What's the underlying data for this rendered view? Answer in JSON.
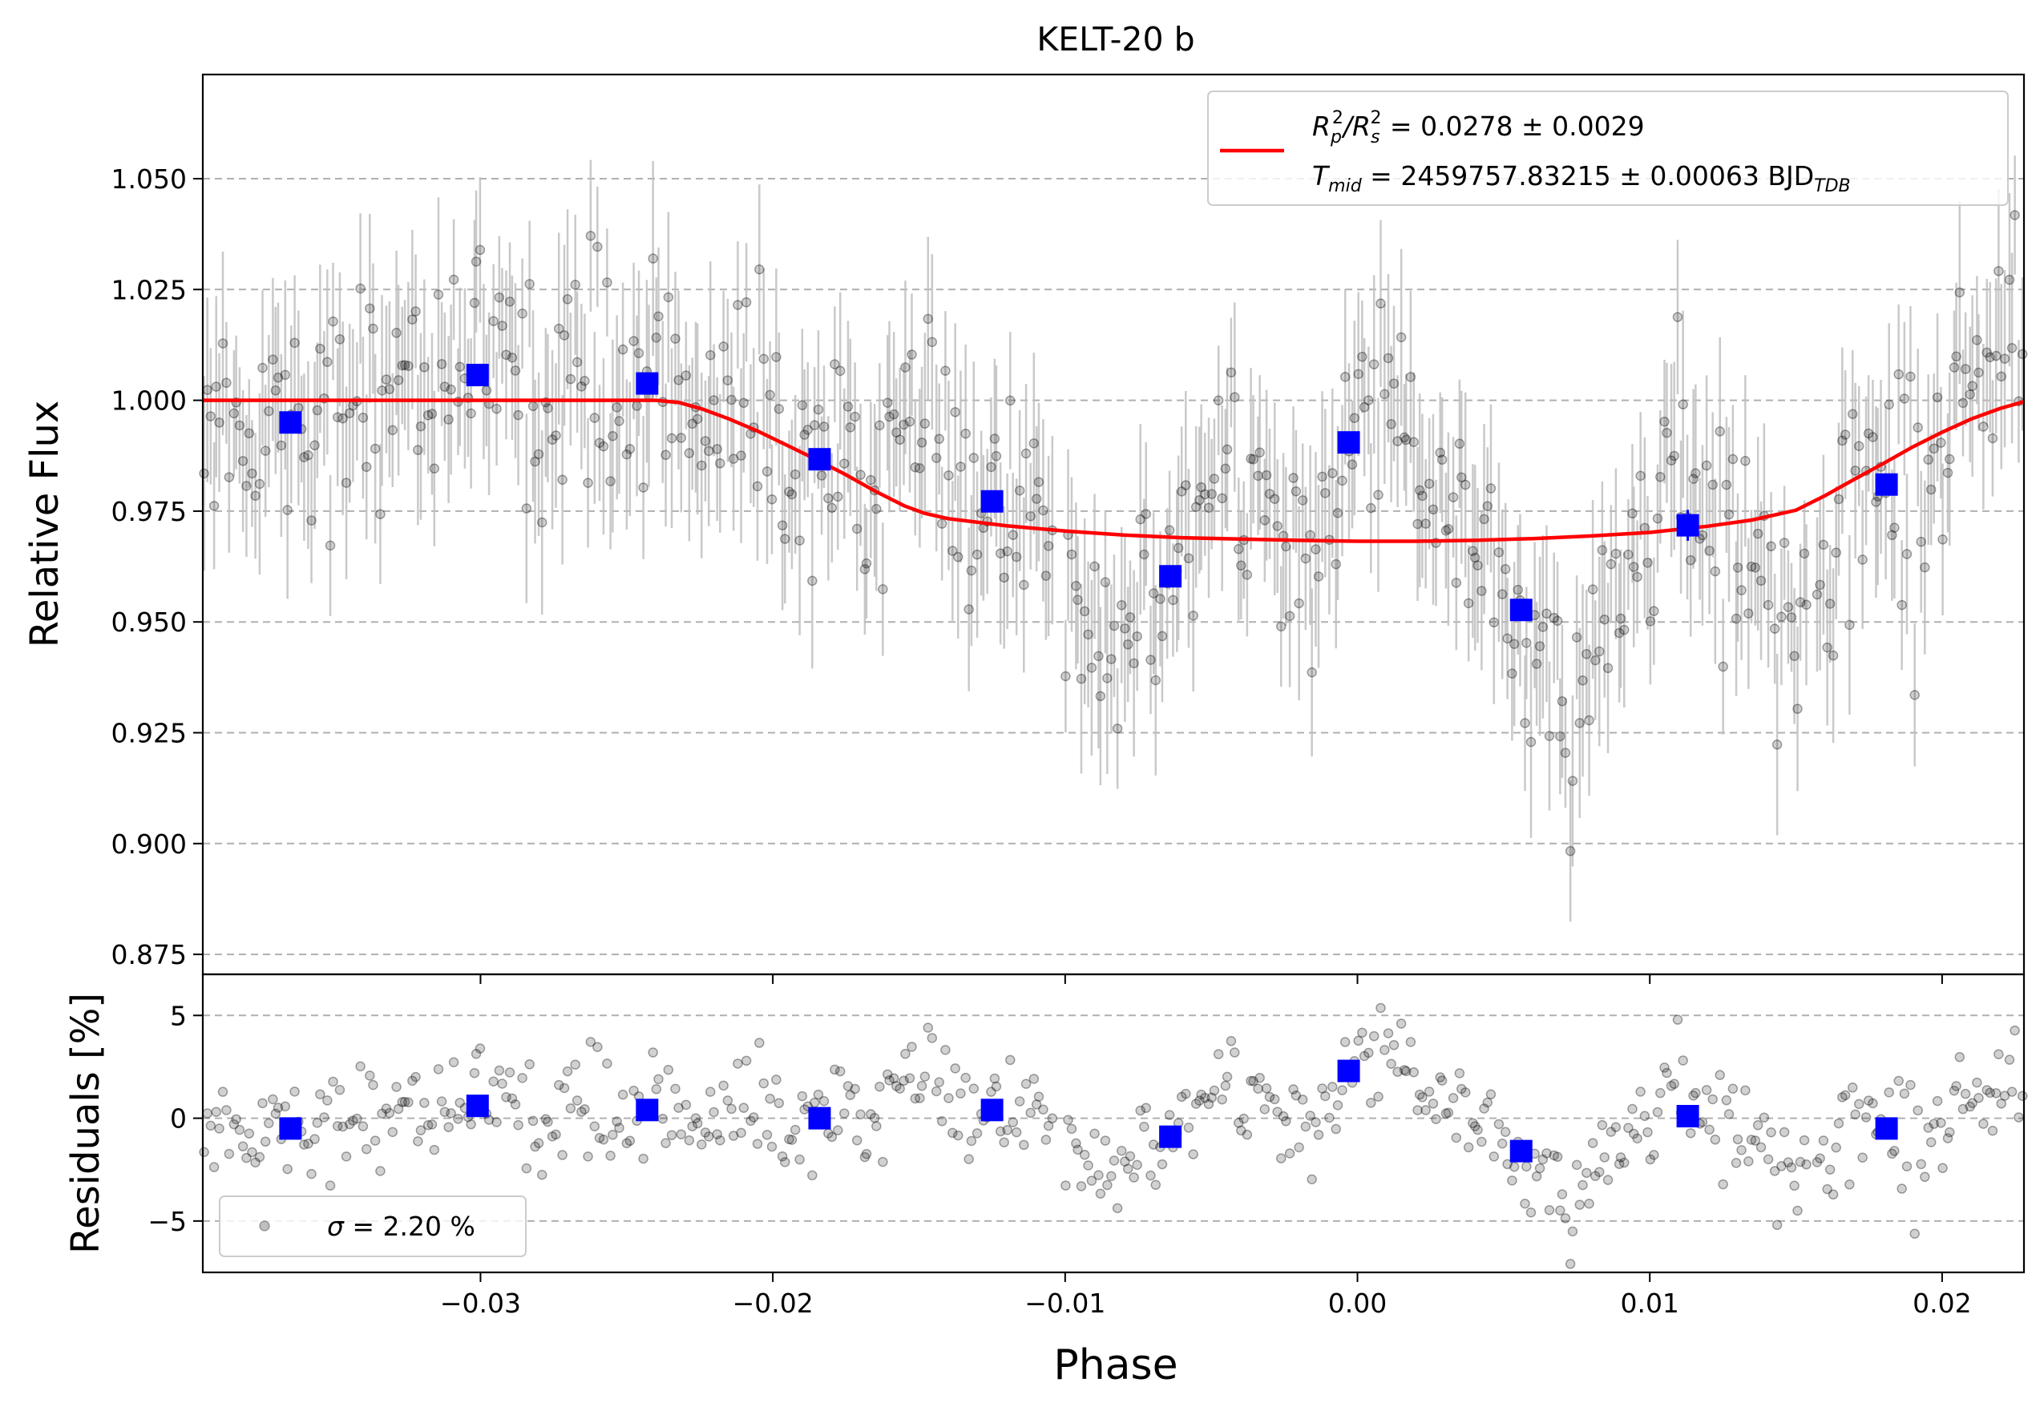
{
  "title": "KELT-20 b",
  "chart_data": [
    {
      "panel": "main",
      "type": "scatter",
      "title": "KELT-20 b",
      "xlabel": "",
      "ylabel": "Relative Flux",
      "xlim": [
        -0.0395,
        0.0228
      ],
      "ylim": [
        0.8705,
        1.0735
      ],
      "xticks": [
        -0.03,
        -0.02,
        -0.01,
        0.0,
        0.01,
        0.02
      ],
      "yticks": [
        0.875,
        0.9,
        0.925,
        0.95,
        0.975,
        1.0,
        1.025,
        1.05
      ],
      "ytick_labels": [
        "0.875",
        "0.900",
        "0.925",
        "0.950",
        "0.975",
        "1.000",
        "1.025",
        "1.050"
      ],
      "grid": "horizontal dashed",
      "legend_position": "top-right",
      "legend": {
        "line1_prefix": "R",
        "line1_sub1": "p",
        "line1_sup1": "2",
        "line1_slash": "/R",
        "line1_sub2": "s",
        "line1_sup2": "2",
        "line1_value": " = 0.0278 ± 0.0029",
        "line2_prefix": "T",
        "line2_sub": "mid",
        "line2_value": " = 2459757.83215 ± 0.00063 BJD",
        "line2_unit_sub": "TDB"
      },
      "binned_points": {
        "x": [
          -0.0365,
          -0.0301,
          -0.0243,
          -0.0184,
          -0.0125,
          -0.0064,
          -0.0003,
          0.0056,
          0.0113,
          0.0181
        ],
        "y": [
          0.995,
          1.0057,
          1.0038,
          0.9867,
          0.9772,
          0.9603,
          0.9905,
          0.9527,
          0.9718,
          0.981
        ],
        "yerr": [
          0.0015,
          0.0015,
          0.0015,
          0.0015,
          0.0015,
          0.0015,
          0.0015,
          0.0015,
          0.0035,
          0.0015
        ]
      },
      "model_curve": {
        "x": [
          -0.0395,
          -0.024,
          -0.0232,
          -0.0224,
          -0.0215,
          -0.0205,
          -0.0195,
          -0.0185,
          -0.0175,
          -0.0165,
          -0.0155,
          -0.0148,
          -0.014,
          -0.012,
          -0.01,
          -0.008,
          -0.006,
          -0.004,
          -0.002,
          0.0,
          0.002,
          0.004,
          0.006,
          0.008,
          0.01,
          0.012,
          0.0135,
          0.015,
          0.016,
          0.017,
          0.018,
          0.019,
          0.02,
          0.021,
          0.022,
          0.0228
        ],
        "y": [
          1.0,
          1.0,
          0.9995,
          0.998,
          0.9958,
          0.993,
          0.9898,
          0.9866,
          0.9832,
          0.9795,
          0.9762,
          0.9745,
          0.9733,
          0.9717,
          0.9705,
          0.9696,
          0.969,
          0.9687,
          0.9684,
          0.9682,
          0.9682,
          0.9684,
          0.9688,
          0.9694,
          0.9702,
          0.9716,
          0.973,
          0.9752,
          0.9785,
          0.9822,
          0.9858,
          0.9895,
          0.9928,
          0.9958,
          0.9982,
          0.9997
        ]
      },
      "raw_points_note": ""
    },
    {
      "panel": "residuals",
      "type": "scatter",
      "xlabel": "Phase",
      "ylabel": "Residuals [%]",
      "xlim": [
        -0.0395,
        0.0228
      ],
      "ylim": [
        -7.5,
        7
      ],
      "xticks": [
        -0.03,
        -0.02,
        -0.01,
        0.0,
        0.01,
        0.02
      ],
      "xtick_labels": [
        "−0.03",
        "−0.02",
        "−0.01",
        "0.00",
        "0.01",
        "0.02"
      ],
      "yticks": [
        -5,
        0,
        5
      ],
      "ytick_labels": [
        "−5",
        "0",
        "5"
      ],
      "grid": "horizontal dashed",
      "legend_position": "bottom-left",
      "legend": {
        "sigma_symbol": "σ",
        "sigma_value": " = 2.20 %"
      },
      "binned_points": {
        "x": [
          -0.0365,
          -0.0301,
          -0.0243,
          -0.0184,
          -0.0125,
          -0.0064,
          -0.0003,
          0.0056,
          0.0113,
          0.0181
        ],
        "y": [
          -0.5,
          0.6,
          0.4,
          0.0,
          0.4,
          -0.9,
          2.3,
          -1.6,
          0.1,
          -0.5
        ]
      }
    }
  ],
  "colors": {
    "model": "#ff0000",
    "binned": "#0000ff",
    "raw_point": "#000000",
    "errorbar": "#bfbfbf",
    "grid": "#b0b0b0"
  }
}
